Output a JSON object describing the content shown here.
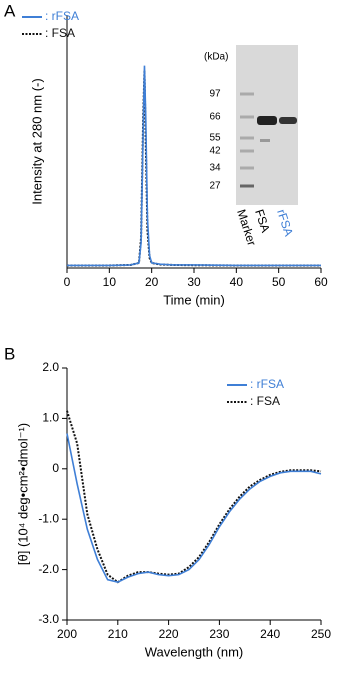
{
  "chart_data": [
    {
      "type": "line",
      "panel_label": "A",
      "xlabel": "Time (min)",
      "ylabel": "Intensity at 280 nm (-)",
      "x": [
        0,
        10,
        15,
        17,
        17.5,
        18,
        18.3,
        18.6,
        19,
        19.5,
        20,
        22,
        25,
        30,
        40,
        50,
        60
      ],
      "xlim": [
        0,
        60
      ],
      "xticks": [
        0,
        10,
        20,
        30,
        40,
        50,
        60
      ],
      "ylim": [
        0,
        1
      ],
      "series": [
        {
          "name": ": rFSA",
          "color": "#3f7fd6",
          "dash": false,
          "values": [
            0.01,
            0.01,
            0.012,
            0.02,
            0.1,
            0.55,
            0.8,
            0.6,
            0.2,
            0.05,
            0.02,
            0.015,
            0.012,
            0.012,
            0.01,
            0.01,
            0.01
          ]
        },
        {
          "name": ": FSA",
          "color": "#111111",
          "dash": true,
          "values": [
            0.01,
            0.01,
            0.012,
            0.02,
            0.12,
            0.6,
            0.78,
            0.5,
            0.15,
            0.04,
            0.02,
            0.014,
            0.012,
            0.011,
            0.01,
            0.01,
            0.01
          ]
        }
      ],
      "inset": {
        "unit_label": "(kDa)",
        "marker_labels": [
          97,
          66,
          55,
          42,
          34,
          27
        ],
        "lanes": [
          "Marker",
          "FSA",
          "rFSA"
        ]
      }
    },
    {
      "type": "line",
      "panel_label": "B",
      "xlabel": "Wavelength (nm)",
      "ylabel": "[θ] (10⁴ deg•cm²•dmol⁻¹)",
      "x": [
        200,
        202,
        204,
        206,
        208,
        210,
        212,
        214,
        216,
        218,
        220,
        222,
        224,
        226,
        228,
        230,
        232,
        234,
        236,
        238,
        240,
        242,
        244,
        246,
        248,
        250
      ],
      "xlim": [
        200,
        250
      ],
      "xticks": [
        200,
        210,
        220,
        230,
        240,
        250
      ],
      "ylim": [
        -3,
        2
      ],
      "yticks": [
        {
          "value": 2,
          "label": "2.0"
        },
        {
          "value": 1,
          "label": "1.0"
        },
        0,
        {
          "value": -1,
          "label": "-1.0"
        },
        {
          "value": -2,
          "label": "-2.0"
        },
        {
          "value": -3,
          "label": "-3.0"
        }
      ],
      "series": [
        {
          "name": ": rFSA",
          "color": "#3f7fd6",
          "dash": false,
          "values": [
            0.7,
            -0.3,
            -1.2,
            -1.8,
            -2.2,
            -2.25,
            -2.15,
            -2.08,
            -2.05,
            -2.1,
            -2.12,
            -2.1,
            -2.0,
            -1.8,
            -1.5,
            -1.15,
            -0.85,
            -0.6,
            -0.4,
            -0.25,
            -0.15,
            -0.08,
            -0.05,
            -0.05,
            -0.05,
            -0.1
          ]
        },
        {
          "name": ": FSA",
          "color": "#111111",
          "dash": true,
          "values": [
            1.15,
            0.5,
            -0.9,
            -1.6,
            -2.1,
            -2.25,
            -2.12,
            -2.05,
            -2.05,
            -2.08,
            -2.1,
            -2.08,
            -1.95,
            -1.75,
            -1.45,
            -1.1,
            -0.8,
            -0.55,
            -0.35,
            -0.22,
            -0.12,
            -0.06,
            -0.03,
            -0.03,
            -0.03,
            -0.05
          ]
        }
      ]
    }
  ]
}
